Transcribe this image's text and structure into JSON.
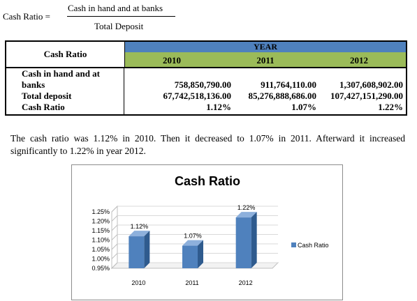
{
  "formula": {
    "lhs": "Cash Ratio =",
    "numerator": "Cash in hand and at banks",
    "denominator": "Total Deposit"
  },
  "table": {
    "header_label": "Cash Ratio",
    "year_header": "YEAR",
    "years": [
      "2010",
      "2011",
      "2012"
    ],
    "rows": [
      {
        "label_line1": "Cash in hand and at",
        "label_line2": "banks",
        "values": [
          "758,850,790.00",
          "911,764,110.00",
          "1,307,608,902.00"
        ]
      },
      {
        "label": "Total deposit",
        "values": [
          "67,742,518,136.00",
          "85,276,888,686.00",
          "107,427,151,290.00"
        ]
      },
      {
        "label": "Cash Ratio",
        "values": [
          "1.12%",
          "1.07%",
          "1.22%"
        ]
      }
    ]
  },
  "paragraph": "The cash ratio was 1.12% in 2010. Then it decreased to 1.07% in 2011. Afterward it increased significantly to 1.22% in year 2012.",
  "chart_data": {
    "type": "bar",
    "title": "Cash Ratio",
    "categories": [
      "2010",
      "2011",
      "2012"
    ],
    "series": [
      {
        "name": "Cash Ratio",
        "values": [
          1.12,
          1.07,
          1.22
        ]
      }
    ],
    "data_labels": [
      "1.12%",
      "1.07%",
      "1.22%"
    ],
    "y_ticks": [
      "1.25%",
      "1.20%",
      "1.15%",
      "1.10%",
      "1.05%",
      "1.00%",
      "0.95%"
    ],
    "ylim": [
      0.95,
      1.25
    ],
    "legend_position": "right",
    "bar_color": "#4f81bd",
    "three_d": true
  }
}
